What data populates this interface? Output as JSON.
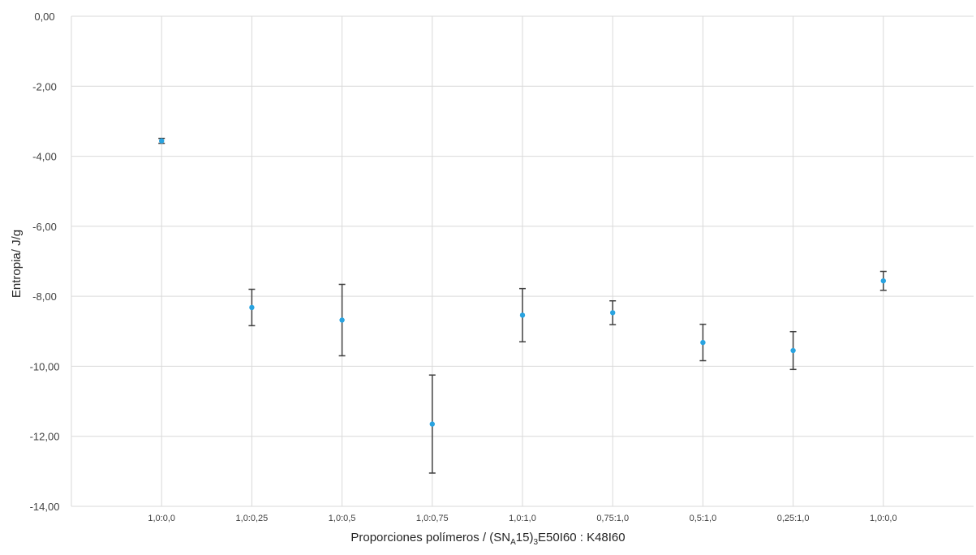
{
  "chart_data": {
    "type": "scatter",
    "title": "",
    "ylabel": "Entropia/ J/g",
    "xlabel": {
      "prefix": "Proporciones polímeros / (SN",
      "sub1": "A",
      "mid": "15)",
      "sub2": "3",
      "suffix": "E50I60 : K48I60"
    },
    "ylim": [
      -14,
      0
    ],
    "ytick_step": 2,
    "ytick_labels": [
      "0,00",
      "-2,00",
      "-4,00",
      "-6,00",
      "-8,00",
      "-10,00",
      "-12,00",
      "-14,00"
    ],
    "grid": true,
    "categories": [
      "1,0:0,0",
      "1,0:0,25",
      "1,0:0,5",
      "1,0:0,75",
      "1,0:1,0",
      "0,75:1,0",
      "0,5:1,0",
      "0,25:1,0",
      "1,0:0,0"
    ],
    "values": [
      -3.56,
      -8.32,
      -8.68,
      -11.65,
      -8.54,
      -8.47,
      -9.32,
      -9.55,
      -7.56
    ],
    "errors": [
      0.07,
      0.52,
      1.02,
      1.4,
      0.76,
      0.34,
      0.52,
      0.54,
      0.27
    ],
    "colors": {
      "marker": "#29a3e0",
      "error_bar": "#404040",
      "grid": "#d9d9d9"
    }
  }
}
